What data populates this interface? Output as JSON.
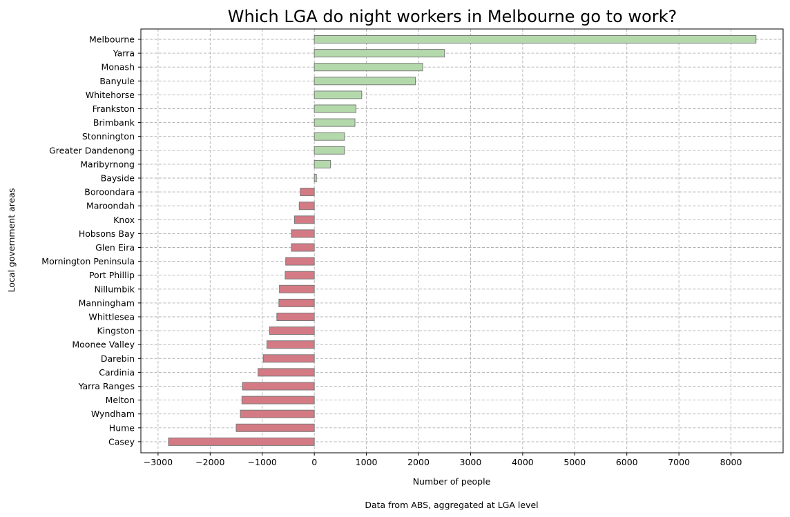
{
  "chart_data": {
    "type": "bar",
    "orientation": "horizontal",
    "title": "Which LGA do night workers in Melbourne go to work?",
    "xlabel": "Number of people",
    "ylabel": "Local government areas",
    "caption": "Data from ABS, aggregated at LGA level",
    "xlim": [
      -3330,
      9000
    ],
    "xticks": [
      -3000,
      -2000,
      -1000,
      0,
      1000,
      2000,
      3000,
      4000,
      5000,
      6000,
      7000,
      8000
    ],
    "xtick_labels": [
      "−3000",
      "−2000",
      "−1000",
      "0",
      "1000",
      "2000",
      "3000",
      "4000",
      "5000",
      "6000",
      "7000",
      "8000"
    ],
    "grid": true,
    "colors": {
      "positive": "#b3d9ab",
      "negative": "#d47a84",
      "edge": "#7a7a7a"
    },
    "categories": [
      "Melbourne",
      "Yarra",
      "Monash",
      "Banyule",
      "Whitehorse",
      "Frankston",
      "Brimbank",
      "Stonnington",
      "Greater Dandenong",
      "Maribyrnong",
      "Bayside",
      "Boroondara",
      "Maroondah",
      "Knox",
      "Hobsons Bay",
      "Glen Eira",
      "Mornington Peninsula",
      "Port Phillip",
      "Nillumbik",
      "Manningham",
      "Whittlesea",
      "Kingston",
      "Moonee Valley",
      "Darebin",
      "Cardinia",
      "Yarra Ranges",
      "Melton",
      "Wyndham",
      "Hume",
      "Casey"
    ],
    "values": [
      8480,
      2500,
      2080,
      1940,
      910,
      800,
      780,
      580,
      580,
      310,
      40,
      -270,
      -290,
      -380,
      -440,
      -440,
      -550,
      -560,
      -670,
      -680,
      -720,
      -860,
      -910,
      -980,
      -1080,
      -1380,
      -1390,
      -1420,
      -1500,
      -2800
    ]
  }
}
